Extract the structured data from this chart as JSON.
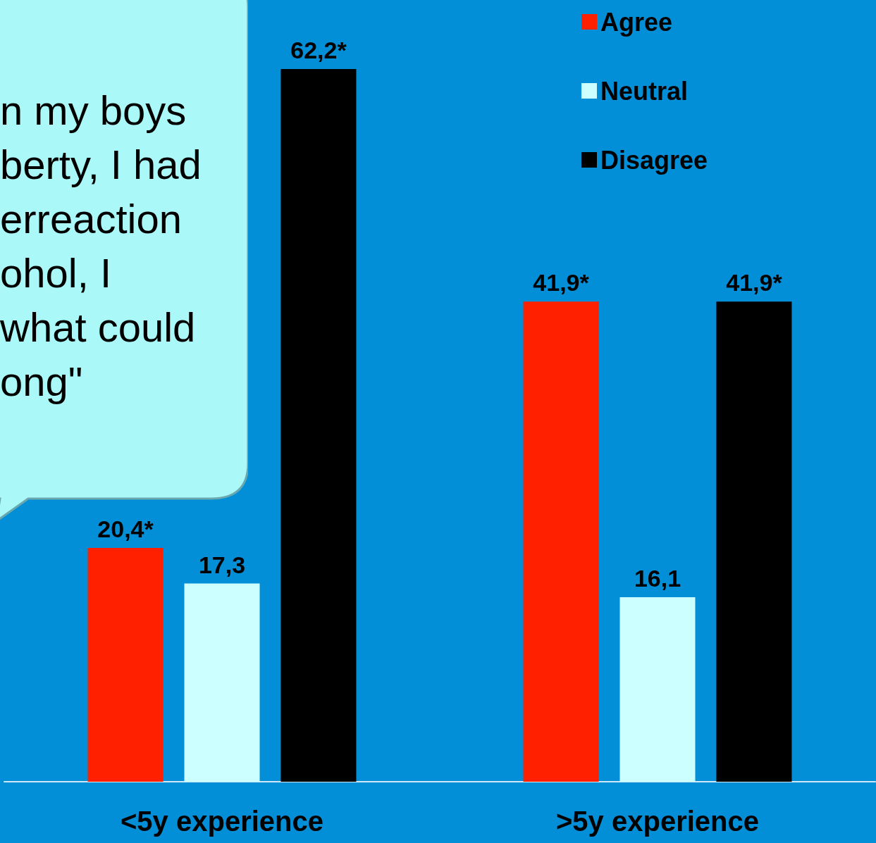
{
  "chart_data": {
    "type": "bar",
    "categories": [
      "<5y experience",
      ">5y experience"
    ],
    "series": [
      {
        "name": "Agree",
        "color": "#ff2000",
        "values": [
          20.4,
          41.9
        ],
        "value_labels": [
          "20,4*",
          "41,9*"
        ]
      },
      {
        "name": "Neutral",
        "color": "#ccffff",
        "values": [
          17.3,
          16.1
        ],
        "value_labels": [
          "17,3",
          "16,1"
        ]
      },
      {
        "name": "Disagree",
        "color": "#000000",
        "values": [
          62.2,
          41.9
        ],
        "value_labels": [
          "62,2*",
          "41,9*"
        ]
      }
    ],
    "legend": "top right",
    "annotations": [
      "n my boys\nberty, I had\nerreaction\nohol, I\nwhat could\nong\""
    ]
  }
}
